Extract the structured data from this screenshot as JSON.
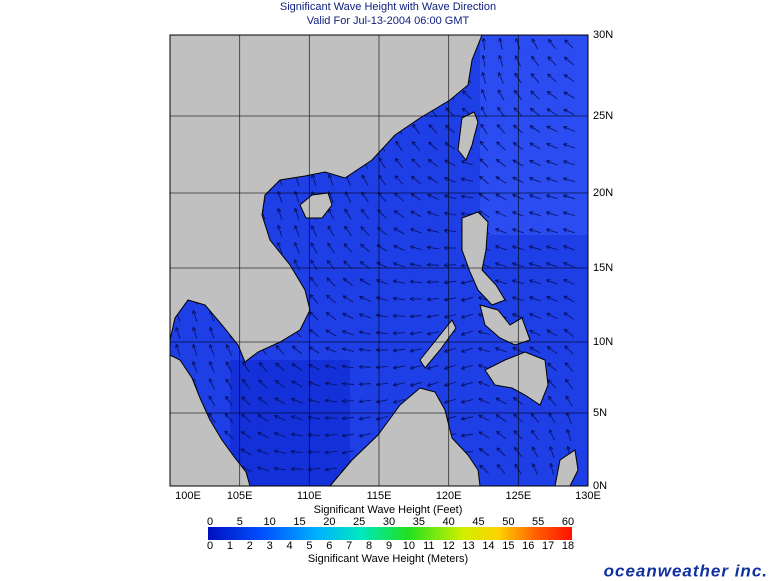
{
  "title": "Significant Wave Height with Wave Direction",
  "subtitle": "Valid For Jul-13-2004 06:00 GMT",
  "map": {
    "lat_labels": [
      "30N",
      "25N",
      "20N",
      "15N",
      "10N",
      "5N",
      "0N"
    ],
    "lon_labels": [
      "100E",
      "105E",
      "110E",
      "115E",
      "120E",
      "125E",
      "130E"
    ]
  },
  "colorbar": {
    "feet_title": "Significant Wave Height (Feet)",
    "feet_labels": [
      0,
      5,
      10,
      15,
      20,
      25,
      30,
      35,
      40,
      45,
      50,
      55,
      60
    ],
    "meters_title": "Significant Wave Height (Meters)",
    "meters_labels": [
      0,
      1,
      2,
      3,
      4,
      5,
      6,
      7,
      8,
      9,
      10,
      11,
      12,
      13,
      14,
      15,
      16,
      17,
      18
    ]
  },
  "brand": "oceanweather inc."
}
